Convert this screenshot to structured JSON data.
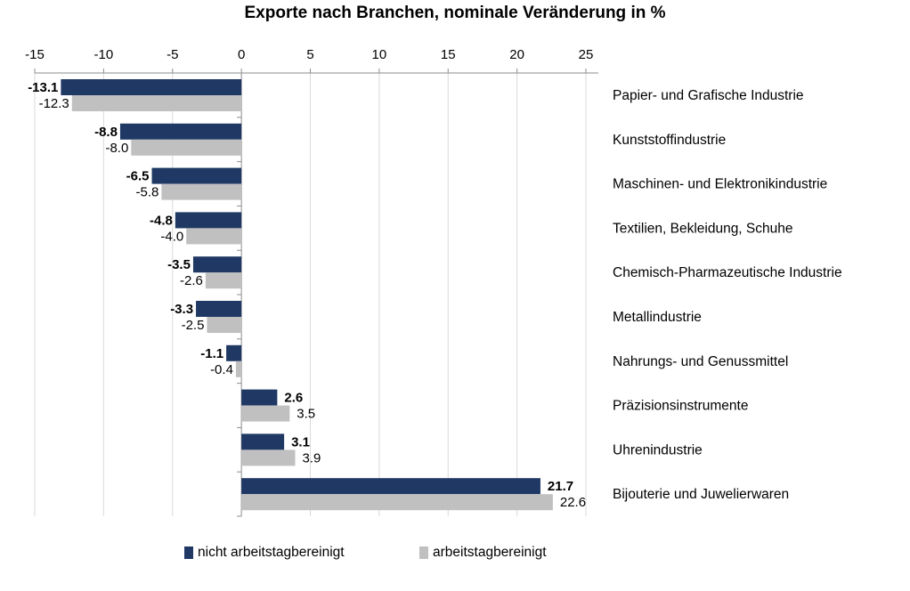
{
  "chart_data": {
    "type": "bar",
    "orientation": "horizontal",
    "title": "Exporte nach Branchen, nominale Veränderung in %",
    "categories": [
      "Papier- und Grafische Industrie",
      "Kunststoffindustrie",
      "Maschinen- und Elektronikindustrie",
      "Textilien, Bekleidung, Schuhe",
      "Chemisch-Pharmazeutische Industrie",
      "Metallindustrie",
      "Nahrungs- und Genussmittel",
      "Präzisionsinstrumente",
      "Uhrenindustrie",
      "Bijouterie und Juwelierwaren"
    ],
    "series": [
      {
        "name": "nicht arbeitstagbereinigt",
        "color": "#1f3864",
        "values": [
          -13.1,
          -8.8,
          -6.5,
          -4.8,
          -3.5,
          -3.3,
          -1.1,
          2.6,
          3.1,
          21.7
        ],
        "labels": [
          "-13.1",
          "-8.8",
          "-6.5",
          "-4.8",
          "-3.5",
          "-3.3",
          "-1.1",
          "2.6",
          "3.1",
          "21.7"
        ]
      },
      {
        "name": "arbeitstagbereinigt",
        "color": "#c0c0c0",
        "values": [
          -12.3,
          -8.0,
          -5.8,
          -4.0,
          -2.6,
          -2.5,
          -0.4,
          3.5,
          3.9,
          22.6
        ],
        "labels": [
          "-12.3",
          "-8.0",
          "-5.8",
          "-4.0",
          "-2.6",
          "-2.5",
          "-0.4",
          "3.5",
          "3.9",
          "22.6"
        ]
      }
    ],
    "xlim": [
      -15,
      25
    ],
    "xticks": [
      -15,
      -10,
      -5,
      0,
      5,
      10,
      15,
      20,
      25
    ],
    "xtick_labels": [
      "-15",
      "-10",
      "-5",
      "0",
      "5",
      "10",
      "15",
      "20",
      "25"
    ],
    "x_axis_position": "top",
    "grid": true,
    "legend_position": "bottom"
  }
}
